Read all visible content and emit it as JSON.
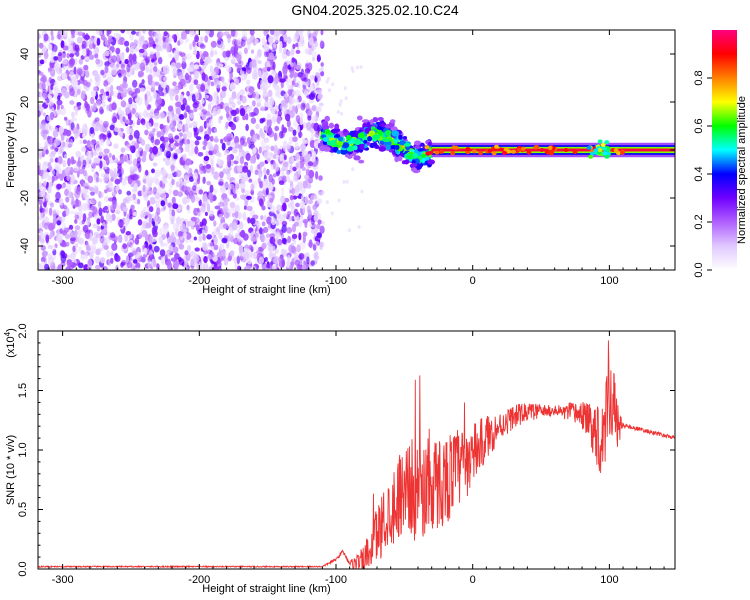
{
  "title": "GN04.2025.325.02.10.C24",
  "chart_data": [
    {
      "type": "heatmap",
      "name": "spectrogram",
      "xlabel": "Height of straight line (km)",
      "ylabel": "Frequency (Hz)",
      "xlim": [
        -318,
        148
      ],
      "ylim": [
        -50,
        50
      ],
      "x_ticks": [
        -300,
        -200,
        -100,
        0,
        100
      ],
      "y_ticks": [
        -40,
        -20,
        0,
        20,
        40
      ],
      "colorbar": {
        "label": "Normalized spectral amplitude",
        "range": [
          0.0,
          1.0
        ],
        "ticks": [
          "0.0",
          "0.2",
          "0.4",
          "0.6",
          "0.8"
        ],
        "colormap": [
          "#ffffff",
          "#e0c8ff",
          "#b060ff",
          "#7000ff",
          "#0000ff",
          "#00ffff",
          "#00ff00",
          "#ffff00",
          "#ff8000",
          "#ff0000",
          "#ff0080"
        ]
      },
      "regions": [
        {
          "x_range": [
            -318,
            -110
          ],
          "f_range": [
            -50,
            50
          ],
          "description": "noise",
          "amplitude": 0.15
        },
        {
          "x_range": [
            -110,
            -30
          ],
          "f_center": [
            7,
            0
          ],
          "f_spread": 8,
          "amplitude": 0.45
        },
        {
          "x_range": [
            -30,
            148
          ],
          "f_center": [
            0,
            0
          ],
          "f_spread": 3,
          "amplitude": 0.9
        }
      ]
    },
    {
      "type": "line",
      "name": "snr",
      "xlabel": "Height of straight line (km)",
      "ylabel": "SNR (10 * v/v)",
      "y_multiplier": "(x10",
      "y_multiplier_exp": "4",
      "y_multiplier_close": ")",
      "xlim": [
        -318,
        148
      ],
      "ylim": [
        0.0,
        2.0
      ],
      "x_ticks": [
        -300,
        -200,
        -100,
        0,
        100
      ],
      "y_ticks": [
        "0.0",
        "0.5",
        "1.0",
        "1.5",
        "2.0"
      ],
      "color": "#ee3333",
      "envelope": [
        [
          -318,
          0.02
        ],
        [
          -110,
          0.02
        ],
        [
          -100,
          0.08
        ],
        [
          -95,
          0.15
        ],
        [
          -90,
          0.05
        ],
        [
          -80,
          0.05
        ],
        [
          -70,
          0.3
        ],
        [
          -60,
          0.5
        ],
        [
          -50,
          0.7
        ],
        [
          -40,
          0.65
        ],
        [
          -30,
          0.7
        ],
        [
          -20,
          0.75
        ],
        [
          -10,
          0.85
        ],
        [
          0,
          0.95
        ],
        [
          10,
          1.1
        ],
        [
          20,
          1.2
        ],
        [
          30,
          1.28
        ],
        [
          40,
          1.32
        ],
        [
          60,
          1.33
        ],
        [
          80,
          1.3
        ],
        [
          95,
          1.1
        ],
        [
          100,
          1.6
        ],
        [
          105,
          1.22
        ],
        [
          120,
          1.18
        ],
        [
          148,
          1.1
        ]
      ],
      "noise_amplitude": [
        [
          -318,
          0.005
        ],
        [
          -110,
          0.005
        ],
        [
          -90,
          0.02
        ],
        [
          -70,
          0.25
        ],
        [
          -40,
          0.45
        ],
        [
          -10,
          0.35
        ],
        [
          20,
          0.12
        ],
        [
          60,
          0.04
        ],
        [
          85,
          0.15
        ],
        [
          100,
          0.5
        ],
        [
          110,
          0.02
        ],
        [
          148,
          0.015
        ]
      ]
    }
  ]
}
